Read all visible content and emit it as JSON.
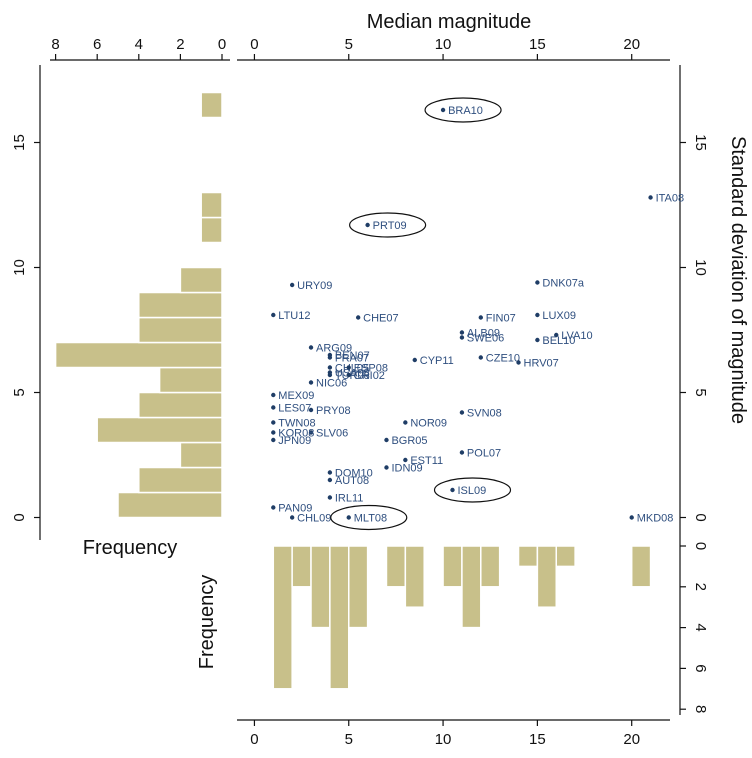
{
  "chart_data": {
    "type": "scatter",
    "title": "",
    "xlabel": "Median magnitude",
    "ylabel": "Standard deviation of magnitude",
    "xlim": [
      -0.5,
      21.5
    ],
    "ylim": [
      -0.5,
      17.5
    ],
    "xticks": [
      0,
      5,
      10,
      15,
      20
    ],
    "yticks": [
      0,
      5,
      10,
      15
    ],
    "colors": {
      "points": "#1f3d66",
      "labels": "#2f4f7f",
      "bars": "#c8c08a",
      "bar_edge": "#ffffff",
      "axes": "#111111"
    },
    "points": [
      {
        "label": "BRA10",
        "x": 10,
        "y": 16.3
      },
      {
        "label": "ITA08",
        "x": 21,
        "y": 12.8
      },
      {
        "label": "PRT09",
        "x": 6,
        "y": 11.7
      },
      {
        "label": "URY09",
        "x": 2,
        "y": 9.3
      },
      {
        "label": "DNK07a",
        "x": 15,
        "y": 9.4
      },
      {
        "label": "LTU12",
        "x": 1,
        "y": 8.1
      },
      {
        "label": "CHE07",
        "x": 5.5,
        "y": 8.0
      },
      {
        "label": "FIN07",
        "x": 12,
        "y": 8.0
      },
      {
        "label": "LUX09",
        "x": 15,
        "y": 8.1
      },
      {
        "label": "ALB09",
        "x": 11,
        "y": 7.4
      },
      {
        "label": "SWE06",
        "x": 11,
        "y": 7.2
      },
      {
        "label": "LVA10",
        "x": 16,
        "y": 7.3
      },
      {
        "label": "BEL10",
        "x": 15,
        "y": 7.1
      },
      {
        "label": "ARG09",
        "x": 3,
        "y": 6.8
      },
      {
        "label": "BEN07",
        "x": 4,
        "y": 6.5
      },
      {
        "label": "FRA07",
        "x": 4,
        "y": 6.4
      },
      {
        "label": "CYP11",
        "x": 8.5,
        "y": 6.3
      },
      {
        "label": "CZE10",
        "x": 12,
        "y": 6.4
      },
      {
        "label": "HRV07",
        "x": 14,
        "y": 6.2
      },
      {
        "label": "CHL05",
        "x": 4,
        "y": 6.0
      },
      {
        "label": "ESP08",
        "x": 5,
        "y": 6.0
      },
      {
        "label": "USA08",
        "x": 4,
        "y": 5.8
      },
      {
        "label": "TUR08",
        "x": 4,
        "y": 5.7
      },
      {
        "label": "CRI02",
        "x": 5,
        "y": 5.7
      },
      {
        "label": "NIC06",
        "x": 3,
        "y": 5.4
      },
      {
        "label": "MEX09",
        "x": 1,
        "y": 4.9
      },
      {
        "label": "LES07",
        "x": 1,
        "y": 4.4
      },
      {
        "label": "PRY08",
        "x": 3,
        "y": 4.3
      },
      {
        "label": "SVN08",
        "x": 11,
        "y": 4.2
      },
      {
        "label": "TWN08",
        "x": 1,
        "y": 3.8
      },
      {
        "label": "NOR09",
        "x": 8,
        "y": 3.8
      },
      {
        "label": "SLV06",
        "x": 3,
        "y": 3.4
      },
      {
        "label": "KOR08",
        "x": 1,
        "y": 3.4
      },
      {
        "label": "JPN09",
        "x": 1,
        "y": 3.1
      },
      {
        "label": "BGR05",
        "x": 7,
        "y": 3.1
      },
      {
        "label": "POL07",
        "x": 11,
        "y": 2.6
      },
      {
        "label": "EST11",
        "x": 8,
        "y": 2.3
      },
      {
        "label": "IDN09",
        "x": 7,
        "y": 2.0
      },
      {
        "label": "DOM10",
        "x": 4,
        "y": 1.8
      },
      {
        "label": "AUT08",
        "x": 4,
        "y": 1.5
      },
      {
        "label": "ISL09",
        "x": 10.5,
        "y": 1.1
      },
      {
        "label": "IRL11",
        "x": 4,
        "y": 0.8
      },
      {
        "label": "PAN09",
        "x": 1,
        "y": 0.4
      },
      {
        "label": "CHL09",
        "x": 2,
        "y": 0.0
      },
      {
        "label": "MLT08",
        "x": 5,
        "y": 0.0
      },
      {
        "label": "MKD08",
        "x": 20,
        "y": 0.0
      }
    ],
    "circled": [
      "BRA10",
      "PRT09",
      "ISL09",
      "MLT08"
    ],
    "x_histogram": {
      "xlabel": "Frequency",
      "ticks": [
        0,
        2,
        4,
        6,
        8
      ],
      "bins": [
        {
          "start": 1,
          "end": 2,
          "count": 7
        },
        {
          "start": 2,
          "end": 3,
          "count": 2
        },
        {
          "start": 3,
          "end": 4,
          "count": 4
        },
        {
          "start": 4,
          "end": 5,
          "count": 7
        },
        {
          "start": 5,
          "end": 6,
          "count": 4
        },
        {
          "start": 7,
          "end": 8,
          "count": 2
        },
        {
          "start": 8,
          "end": 9,
          "count": 3
        },
        {
          "start": 10,
          "end": 11,
          "count": 2
        },
        {
          "start": 11,
          "end": 12,
          "count": 4
        },
        {
          "start": 12,
          "end": 13,
          "count": 2
        },
        {
          "start": 14,
          "end": 15,
          "count": 1
        },
        {
          "start": 15,
          "end": 16,
          "count": 3
        },
        {
          "start": 16,
          "end": 17,
          "count": 1
        },
        {
          "start": 20,
          "end": 21,
          "count": 2
        }
      ]
    },
    "y_histogram": {
      "xlabel": "Frequency",
      "ticks": [
        8,
        6,
        4,
        2,
        0
      ],
      "bins": [
        {
          "start": 0,
          "end": 1,
          "count": 5
        },
        {
          "start": 1,
          "end": 2,
          "count": 4
        },
        {
          "start": 2,
          "end": 3,
          "count": 2
        },
        {
          "start": 3,
          "end": 4,
          "count": 6
        },
        {
          "start": 4,
          "end": 5,
          "count": 4
        },
        {
          "start": 5,
          "end": 6,
          "count": 3
        },
        {
          "start": 6,
          "end": 7,
          "count": 8
        },
        {
          "start": 7,
          "end": 8,
          "count": 4
        },
        {
          "start": 8,
          "end": 9,
          "count": 4
        },
        {
          "start": 9,
          "end": 10,
          "count": 2
        },
        {
          "start": 11,
          "end": 12,
          "count": 1
        },
        {
          "start": 12,
          "end": 13,
          "count": 1
        },
        {
          "start": 16,
          "end": 17,
          "count": 1
        }
      ]
    }
  }
}
